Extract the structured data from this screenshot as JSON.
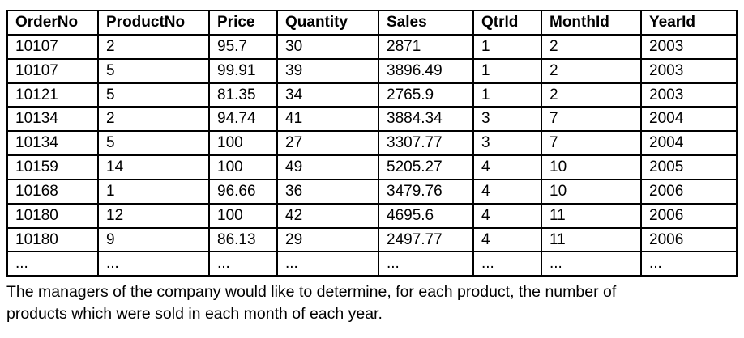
{
  "table": {
    "headers": [
      "OrderNo",
      "ProductNo",
      "Price",
      "Quantity",
      "Sales",
      "QtrId",
      "MonthId",
      "YearId"
    ],
    "rows": [
      [
        "10107",
        "2",
        "95.7",
        "30",
        "2871",
        "1",
        "2",
        "2003"
      ],
      [
        "10107",
        "5",
        "99.91",
        "39",
        "3896.49",
        "1",
        "2",
        "2003"
      ],
      [
        "10121",
        "5",
        "81.35",
        "34",
        "2765.9",
        "1",
        "2",
        "2003"
      ],
      [
        "10134",
        "2",
        "94.74",
        "41",
        "3884.34",
        "3",
        "7",
        "2004"
      ],
      [
        "10134",
        "5",
        "100",
        "27",
        "3307.77",
        "3",
        "7",
        "2004"
      ],
      [
        "10159",
        "14",
        "100",
        "49",
        "5205.27",
        "4",
        "10",
        "2005"
      ],
      [
        "10168",
        "1",
        "96.66",
        "36",
        "3479.76",
        "4",
        "10",
        "2006"
      ],
      [
        "10180",
        "12",
        "100",
        "42",
        "4695.6",
        "4",
        "11",
        "2006"
      ],
      [
        "10180",
        "9",
        "86.13",
        "29",
        "2497.77",
        "4",
        "11",
        "2006"
      ],
      [
        "...",
        "...",
        "...",
        "...",
        "...",
        "...",
        "...",
        "..."
      ]
    ]
  },
  "caption": {
    "text": "The managers of the company would like to determine, for each product, the number of products which were sold in each month of each year."
  }
}
